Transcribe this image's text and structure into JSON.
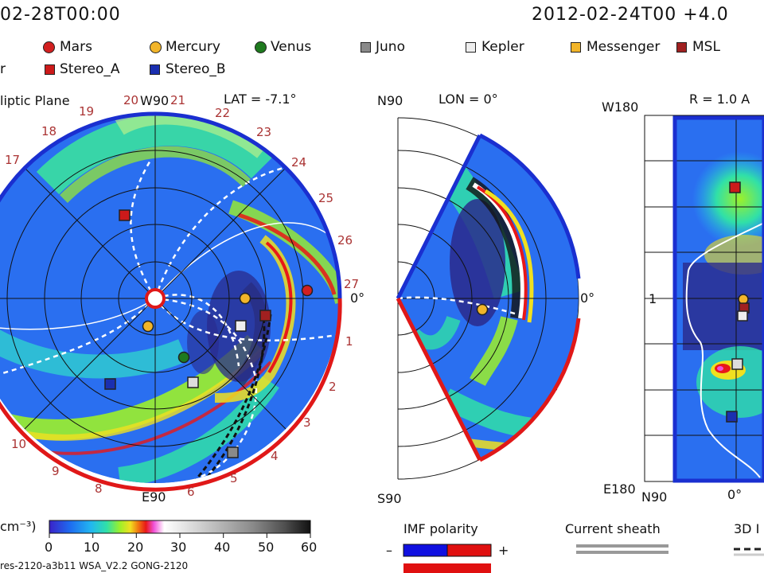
{
  "header": {
    "left_time": "02-28T00:00",
    "right_time": "2012-02-24T00 +4.0"
  },
  "legend": [
    {
      "label": "Mars",
      "shape": "circle",
      "color": "#d22020"
    },
    {
      "label": "Mercury",
      "shape": "circle",
      "color": "#f2b52a"
    },
    {
      "label": "Venus",
      "shape": "circle",
      "color": "#1e7a1e"
    },
    {
      "label": "Juno",
      "shape": "square",
      "color": "#8a8a8a"
    },
    {
      "label": "Kepler",
      "shape": "square",
      "color": "#eeeeee"
    },
    {
      "label": "Messenger",
      "shape": "square",
      "color": "#f2b52a"
    },
    {
      "label": "MSL",
      "shape": "square",
      "color": "#a02020"
    },
    {
      "label": "r",
      "shape": "none",
      "color": ""
    },
    {
      "label": "Stereo_A",
      "shape": "square",
      "color": "#cc1a1a"
    },
    {
      "label": "Stereo_B",
      "shape": "square",
      "color": "#1a2fb0"
    }
  ],
  "panel_left": {
    "title": "liptic Plane",
    "lat": "LAT = -7.1°",
    "top_label": "W90",
    "bottom_label": "E90",
    "zero_label": "0°",
    "sector_numbers": [
      "17",
      "18",
      "19",
      "20",
      "21",
      "22",
      "23",
      "24",
      "25",
      "26",
      "27",
      "1",
      "2",
      "3",
      "4",
      "5",
      "6",
      "8",
      "9",
      "10"
    ]
  },
  "panel_mid": {
    "lon": "LON = 0°",
    "top_label": "N90",
    "bottom_label": "S90",
    "zero_label": "0°"
  },
  "panel_right": {
    "r_label": "R = 1.0 A",
    "top_left": "W180",
    "bottom_left": "E180",
    "mid_left": "1",
    "bottom_axis": [
      "N90",
      "0°"
    ]
  },
  "colorbar": {
    "unit": "cm⁻³)",
    "ticks": [
      "0",
      "10",
      "20",
      "30",
      "40",
      "50",
      "60"
    ],
    "colors": [
      "#3a22c8",
      "#1e6cf0",
      "#22b7f0",
      "#30e0a8",
      "#9cf02a",
      "#f0e020",
      "#f07a10",
      "#e81818",
      "#f050d8",
      "#ffffff",
      "#c8c8c8",
      "#8a8a8a",
      "#505050",
      "#111111"
    ]
  },
  "imf": {
    "title": "IMF polarity",
    "minus": "–",
    "plus": "+",
    "neg_color": "#1010e0",
    "pos_color": "#e01010"
  },
  "sheath": {
    "title": "Current sheath"
  },
  "threed": {
    "title": "3D I"
  },
  "footer": "res-2120-a3b11 WSA_V2.2 GONG-2120"
}
